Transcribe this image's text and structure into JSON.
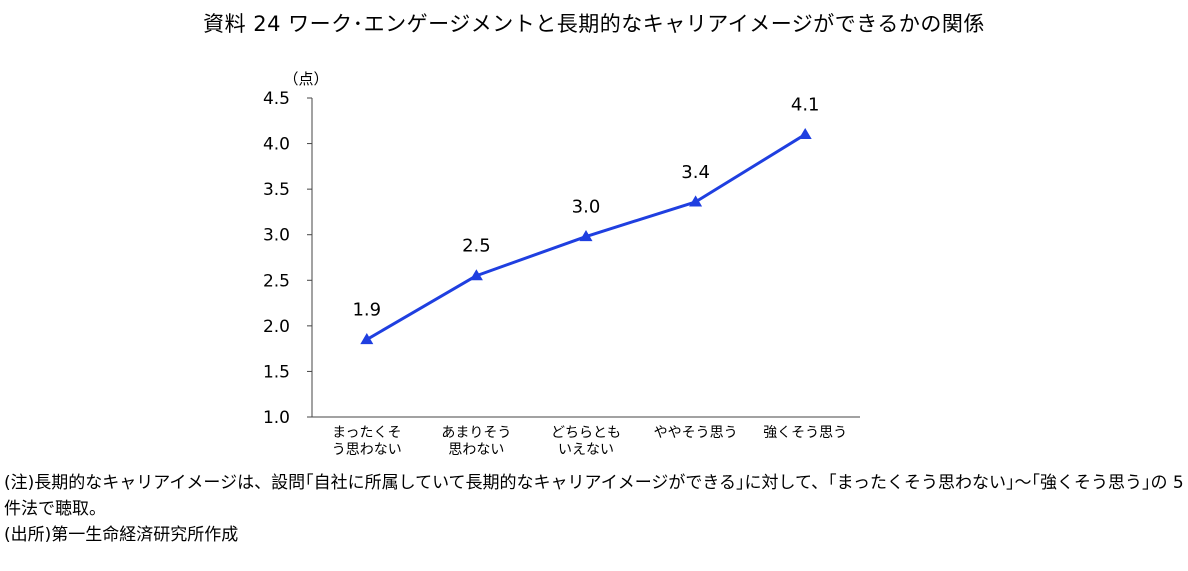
{
  "title": "資料 24 ワーク･エンゲージメントと長期的なキャリアイメージができるかの関係",
  "chart_data": {
    "type": "line",
    "ylabel": "（点）",
    "ylim": [
      1.0,
      4.5
    ],
    "yticks": [
      "1.0",
      "1.5",
      "2.0",
      "2.5",
      "3.0",
      "3.5",
      "4.0",
      "4.5"
    ],
    "yticks_values": [
      1.0,
      1.5,
      2.0,
      2.5,
      3.0,
      3.5,
      4.0,
      4.5
    ],
    "categories": [
      [
        "まったくそ",
        "う思わない"
      ],
      [
        "あまりそう",
        "思わない"
      ],
      [
        "どちらとも",
        "いえない"
      ],
      [
        "ややそう思う"
      ],
      [
        "強くそう思う"
      ]
    ],
    "values": [
      1.85,
      2.55,
      2.98,
      3.36,
      4.1
    ],
    "data_labels": [
      "1.9",
      "2.5",
      "3.0",
      "3.4",
      "4.1"
    ],
    "marker": "triangle",
    "color": "#1f3fe0",
    "grid": false,
    "legend": "none"
  },
  "notes": {
    "note": "(注)長期的なキャリアイメージは、設問｢自社に所属していて長期的なキャリアイメージができる｣に対して、｢まったくそう思わない｣～｢強くそう思う｣の 5 件法で聴取。",
    "source": "(出所)第一生命経済研究所作成"
  }
}
